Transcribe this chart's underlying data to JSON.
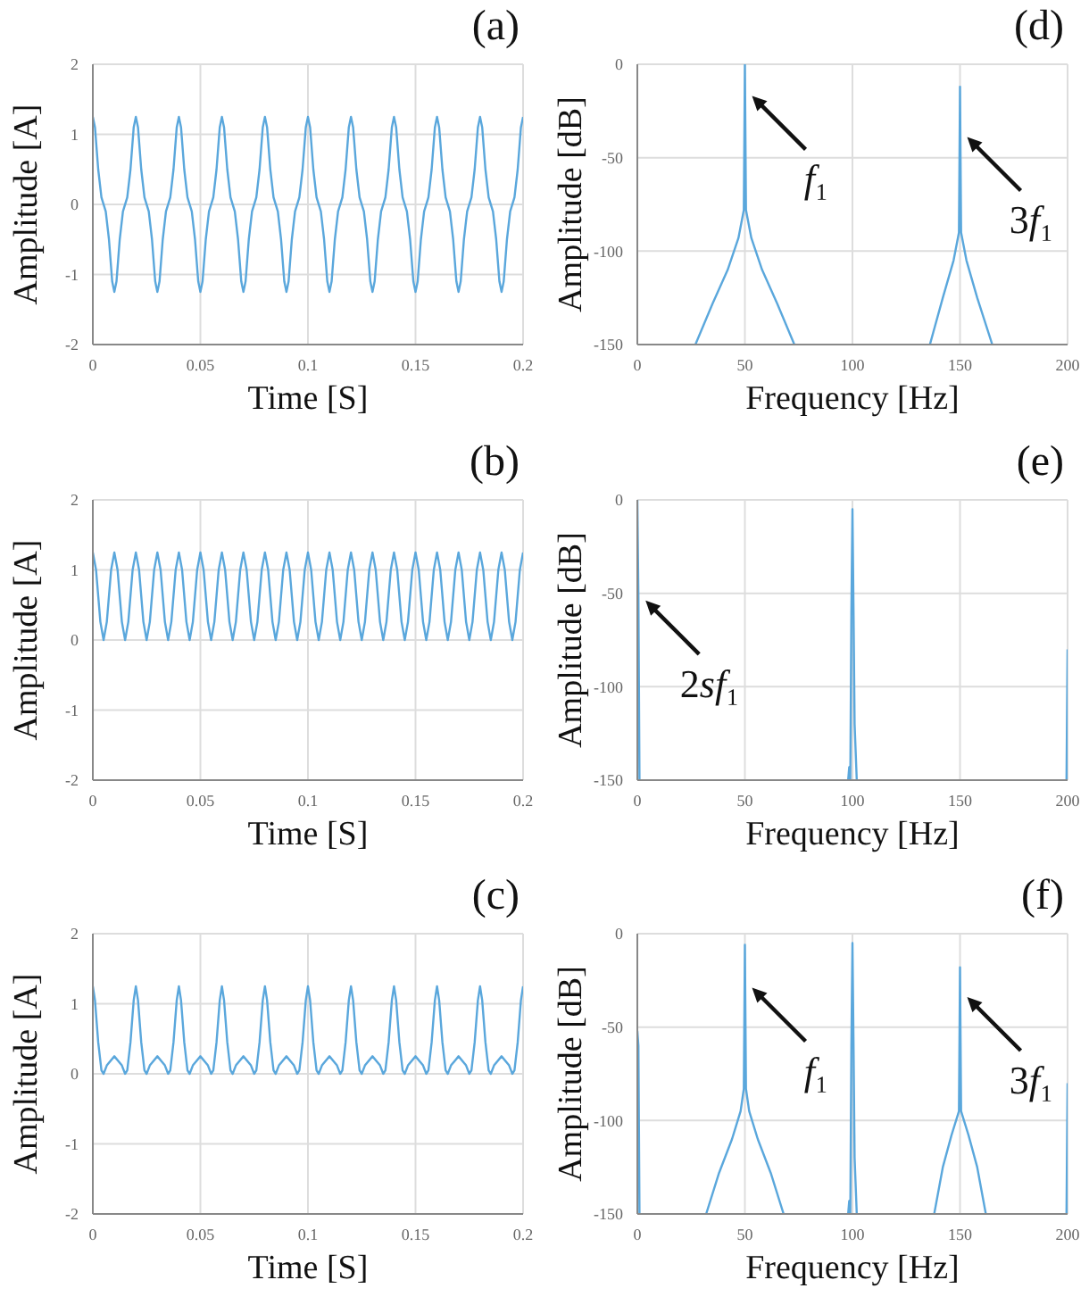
{
  "chart_data": [
    {
      "type": "line",
      "title": "(a)",
      "xlabel": "Time [S]",
      "ylabel": "Amplitude [A]",
      "color": "#5aa7dc",
      "grid": true,
      "xlim": [
        0,
        0.2
      ],
      "xticks": [
        0,
        0.05,
        0.1,
        0.15,
        0.2
      ],
      "ylim": [
        -2,
        2
      ],
      "yticks": [
        -2,
        -1,
        0,
        1,
        2
      ],
      "x": [
        0,
        0.001,
        0.0025,
        0.004,
        0.006,
        0.0075,
        0.009,
        0.01,
        0.011,
        0.0125,
        0.014,
        0.016,
        0.0175,
        0.019,
        0.02,
        0.021,
        0.0225,
        0.024,
        0.026,
        0.0275,
        0.029,
        0.03,
        0.031,
        0.0325,
        0.034,
        0.036,
        0.0375,
        0.039,
        0.04,
        0.041,
        0.0425,
        0.044,
        0.046,
        0.0475,
        0.049,
        0.05,
        0.051,
        0.0525,
        0.054,
        0.056,
        0.0575,
        0.059,
        0.06,
        0.061,
        0.0625,
        0.064,
        0.066,
        0.0675,
        0.069,
        0.07,
        0.071,
        0.0725,
        0.074,
        0.076,
        0.0775,
        0.079,
        0.08,
        0.081,
        0.0825,
        0.084,
        0.086,
        0.0875,
        0.089,
        0.09,
        0.091,
        0.0925,
        0.094,
        0.096,
        0.0975,
        0.099,
        0.1,
        0.101,
        0.1025,
        0.104,
        0.106,
        0.1075,
        0.109,
        0.11,
        0.111,
        0.1125,
        0.114,
        0.116,
        0.1175,
        0.119,
        0.12,
        0.121,
        0.1225,
        0.124,
        0.126,
        0.1275,
        0.129,
        0.13,
        0.131,
        0.1325,
        0.134,
        0.136,
        0.1375,
        0.139,
        0.14,
        0.141,
        0.1425,
        0.144,
        0.146,
        0.1475,
        0.149,
        0.15,
        0.151,
        0.1525,
        0.154,
        0.156,
        0.1575,
        0.159,
        0.16,
        0.161,
        0.1625,
        0.164,
        0.166,
        0.1675,
        0.169,
        0.17,
        0.171,
        0.1725,
        0.174,
        0.176,
        0.1775,
        0.179,
        0.18,
        0.181,
        0.1825,
        0.184,
        0.186,
        0.1875,
        0.189,
        0.19,
        0.191,
        0.1925,
        0.194,
        0.196,
        0.1975,
        0.199,
        0.2
      ],
      "values": [
        1.25,
        1.1,
        0.5,
        0.1,
        -0.1,
        -0.5,
        -1.1,
        -1.25,
        -1.1,
        -0.5,
        -0.1,
        0.1,
        0.5,
        1.1,
        1.25,
        1.1,
        0.5,
        0.1,
        -0.1,
        -0.5,
        -1.1,
        -1.25,
        -1.1,
        -0.5,
        -0.1,
        0.1,
        0.5,
        1.1,
        1.25,
        1.1,
        0.5,
        0.1,
        -0.1,
        -0.5,
        -1.1,
        -1.25,
        -1.1,
        -0.5,
        -0.1,
        0.1,
        0.5,
        1.1,
        1.25,
        1.1,
        0.5,
        0.1,
        -0.1,
        -0.5,
        -1.1,
        -1.25,
        -1.1,
        -0.5,
        -0.1,
        0.1,
        0.5,
        1.1,
        1.25,
        1.1,
        0.5,
        0.1,
        -0.1,
        -0.5,
        -1.1,
        -1.25,
        -1.1,
        -0.5,
        -0.1,
        0.1,
        0.5,
        1.1,
        1.25,
        1.1,
        0.5,
        0.1,
        -0.1,
        -0.5,
        -1.1,
        -1.25,
        -1.1,
        -0.5,
        -0.1,
        0.1,
        0.5,
        1.1,
        1.25,
        1.1,
        0.5,
        0.1,
        -0.1,
        -0.5,
        -1.1,
        -1.25,
        -1.1,
        -0.5,
        -0.1,
        0.1,
        0.5,
        1.1,
        1.25,
        1.1,
        0.5,
        0.1,
        -0.1,
        -0.5,
        -1.1,
        -1.25,
        -1.1,
        -0.5,
        -0.1,
        0.1,
        0.5,
        1.1,
        1.25,
        1.1,
        0.5,
        0.1,
        -0.1,
        -0.5,
        -1.1,
        -1.25,
        -1.1,
        -0.5,
        -0.1,
        0.1,
        0.5,
        1.1,
        1.25,
        1.1,
        0.5,
        0.1,
        -0.1,
        -0.5,
        -1.1,
        -1.25,
        -1.1,
        -0.5,
        -0.1,
        0.1,
        0.5,
        1.1,
        1.25
      ]
    },
    {
      "type": "line",
      "title": "(d)",
      "xlabel": "Frequency [Hz]",
      "ylabel": "Amplitude [dB]",
      "color": "#5aa7dc",
      "grid": true,
      "xlim": [
        0,
        200
      ],
      "xticks": [
        0,
        50,
        100,
        150,
        200
      ],
      "ylim": [
        -150,
        0
      ],
      "yticks": [
        -150,
        -100,
        -50,
        0
      ],
      "x": [
        27,
        35,
        42,
        47,
        49.5,
        50,
        50.5,
        53,
        58,
        65,
        73,
        100,
        136,
        142,
        147,
        149.5,
        150,
        150.5,
        153,
        158,
        165
      ],
      "values": [
        -150,
        -128,
        -110,
        -93,
        -78,
        0,
        -78,
        -93,
        -110,
        -128,
        -150,
        null,
        -150,
        -125,
        -105,
        -90,
        -12,
        -90,
        -105,
        -125,
        -150
      ],
      "annotations": [
        {
          "text": "f₁",
          "x": 50,
          "y": -15
        },
        {
          "text": "3f₁",
          "x": 150,
          "y": -37
        }
      ]
    },
    {
      "type": "line",
      "title": "(b)",
      "xlabel": "Time [S]",
      "ylabel": "Amplitude [A]",
      "color": "#5aa7dc",
      "grid": true,
      "xlim": [
        0,
        0.2
      ],
      "xticks": [
        0,
        0.05,
        0.1,
        0.15,
        0.2
      ],
      "ylim": [
        -2,
        2
      ],
      "yticks": [
        -2,
        -1,
        0,
        1,
        2
      ],
      "x": [
        0,
        0.0015,
        0.0035,
        0.005,
        0.0065,
        0.0085,
        0.01,
        0.0115,
        0.0135,
        0.015,
        0.0165,
        0.0185,
        0.02,
        0.0215,
        0.0235,
        0.025,
        0.0265,
        0.0285,
        0.03,
        0.0315,
        0.0335,
        0.035,
        0.0365,
        0.0385,
        0.04,
        0.0415,
        0.0435,
        0.045,
        0.0465,
        0.0485,
        0.05,
        0.0515,
        0.0535,
        0.055,
        0.0565,
        0.0585,
        0.06,
        0.0615,
        0.0635,
        0.065,
        0.0665,
        0.0685,
        0.07,
        0.0715,
        0.0735,
        0.075,
        0.0765,
        0.0785,
        0.08,
        0.0815,
        0.0835,
        0.085,
        0.0865,
        0.0885,
        0.09,
        0.0915,
        0.0935,
        0.095,
        0.0965,
        0.0985,
        0.1,
        0.1015,
        0.1035,
        0.105,
        0.1065,
        0.1085,
        0.11,
        0.1115,
        0.1135,
        0.115,
        0.1165,
        0.1185,
        0.12,
        0.1215,
        0.1235,
        0.125,
        0.1265,
        0.1285,
        0.13,
        0.1315,
        0.1335,
        0.135,
        0.1365,
        0.1385,
        0.14,
        0.1415,
        0.1435,
        0.145,
        0.1465,
        0.1485,
        0.15,
        0.1515,
        0.1535,
        0.155,
        0.1565,
        0.1585,
        0.16,
        0.1615,
        0.1635,
        0.165,
        0.1665,
        0.1685,
        0.17,
        0.1715,
        0.1735,
        0.175,
        0.1765,
        0.1785,
        0.18,
        0.1815,
        0.1835,
        0.185,
        0.1865,
        0.1885,
        0.19,
        0.1915,
        0.1935,
        0.195,
        0.1965,
        0.1985,
        0.2
      ],
      "values": [
        1.25,
        1,
        0.26,
        0,
        0.26,
        1,
        1.25,
        1,
        0.26,
        0,
        0.26,
        1,
        1.25,
        1,
        0.26,
        0,
        0.26,
        1,
        1.25,
        1,
        0.26,
        0,
        0.26,
        1,
        1.25,
        1,
        0.26,
        0,
        0.26,
        1,
        1.25,
        1,
        0.26,
        0,
        0.26,
        1,
        1.25,
        1,
        0.26,
        0,
        0.26,
        1,
        1.25,
        1,
        0.26,
        0,
        0.26,
        1,
        1.25,
        1,
        0.26,
        0,
        0.26,
        1,
        1.25,
        1,
        0.26,
        0,
        0.26,
        1,
        1.25,
        1,
        0.26,
        0,
        0.26,
        1,
        1.25,
        1,
        0.26,
        0,
        0.26,
        1,
        1.25,
        1,
        0.26,
        0,
        0.26,
        1,
        1.25,
        1,
        0.26,
        0,
        0.26,
        1,
        1.25,
        1,
        0.26,
        0,
        0.26,
        1,
        1.25,
        1,
        0.26,
        0,
        0.26,
        1,
        1.25,
        1,
        0.26,
        0,
        0.26,
        1,
        1.25,
        1,
        0.26,
        0,
        0.26,
        1,
        1.25,
        1,
        0.26,
        0,
        0.26,
        1,
        1.25,
        1,
        0.26,
        0,
        0.26,
        1,
        1.25
      ]
    },
    {
      "type": "line",
      "title": "(e)",
      "xlabel": "Frequency [Hz]",
      "ylabel": "Amplitude [dB]",
      "color": "#5aa7dc",
      "grid": true,
      "xlim": [
        0,
        200
      ],
      "xticks": [
        0,
        50,
        100,
        150,
        200
      ],
      "ylim": [
        -150,
        0
      ],
      "yticks": [
        -150,
        -100,
        -50,
        0
      ],
      "x": [
        0,
        0.5,
        1,
        50,
        98,
        98.5,
        99,
        99.5,
        100,
        100.5,
        101,
        102,
        150,
        199.5,
        200
      ],
      "values": [
        0,
        -52,
        -150,
        null,
        -150,
        -143,
        -150,
        -60,
        -5,
        -60,
        -120,
        -150,
        null,
        -150,
        -80
      ],
      "annotations": [
        {
          "text": "2sf₁",
          "x": 0.5,
          "y": -52
        }
      ]
    },
    {
      "type": "line",
      "title": "(c)",
      "xlabel": "Time [S]",
      "ylabel": "Amplitude [A]",
      "color": "#5aa7dc",
      "grid": true,
      "xlim": [
        0,
        0.2
      ],
      "xticks": [
        0,
        0.05,
        0.1,
        0.15,
        0.2
      ],
      "ylim": [
        -2,
        2
      ],
      "yticks": [
        -2,
        -1,
        0,
        1,
        2
      ],
      "x": [
        0,
        0.001,
        0.0025,
        0.004,
        0.005,
        0.0065,
        0.01,
        0.0135,
        0.015,
        0.016,
        0.0175,
        0.019,
        0.02,
        0.021,
        0.0225,
        0.024,
        0.025,
        0.0265,
        0.03,
        0.0335,
        0.035,
        0.036,
        0.0375,
        0.039,
        0.04,
        0.041,
        0.0425,
        0.044,
        0.045,
        0.0465,
        0.05,
        0.0535,
        0.055,
        0.056,
        0.0575,
        0.059,
        0.06,
        0.061,
        0.0625,
        0.064,
        0.065,
        0.0665,
        0.07,
        0.0735,
        0.075,
        0.076,
        0.0775,
        0.079,
        0.08,
        0.081,
        0.0825,
        0.084,
        0.085,
        0.0865,
        0.09,
        0.0935,
        0.095,
        0.096,
        0.0975,
        0.099,
        0.1,
        0.101,
        0.1025,
        0.104,
        0.105,
        0.1065,
        0.11,
        0.1135,
        0.115,
        0.116,
        0.1175,
        0.119,
        0.12,
        0.121,
        0.1225,
        0.124,
        0.125,
        0.1265,
        0.13,
        0.1335,
        0.135,
        0.136,
        0.1375,
        0.139,
        0.14,
        0.141,
        0.1425,
        0.144,
        0.145,
        0.1465,
        0.15,
        0.1535,
        0.155,
        0.156,
        0.1575,
        0.159,
        0.16,
        0.161,
        0.1625,
        0.164,
        0.165,
        0.1665,
        0.17,
        0.1735,
        0.175,
        0.176,
        0.1775,
        0.179,
        0.18,
        0.181,
        0.1825,
        0.184,
        0.185,
        0.1865,
        0.19,
        0.1935,
        0.195,
        0.196,
        0.1975,
        0.199,
        0.2
      ],
      "values": [
        1.25,
        1.05,
        0.45,
        0.05,
        0,
        0.12,
        0.25,
        0.12,
        0,
        0.05,
        0.45,
        1.05,
        1.25,
        1.05,
        0.45,
        0.05,
        0,
        0.12,
        0.25,
        0.12,
        0,
        0.05,
        0.45,
        1.05,
        1.25,
        1.05,
        0.45,
        0.05,
        0,
        0.12,
        0.25,
        0.12,
        0,
        0.05,
        0.45,
        1.05,
        1.25,
        1.05,
        0.45,
        0.05,
        0,
        0.12,
        0.25,
        0.12,
        0,
        0.05,
        0.45,
        1.05,
        1.25,
        1.05,
        0.45,
        0.05,
        0,
        0.12,
        0.25,
        0.12,
        0,
        0.05,
        0.45,
        1.05,
        1.25,
        1.05,
        0.45,
        0.05,
        0,
        0.12,
        0.25,
        0.12,
        0,
        0.05,
        0.45,
        1.05,
        1.25,
        1.05,
        0.45,
        0.05,
        0,
        0.12,
        0.25,
        0.12,
        0,
        0.05,
        0.45,
        1.05,
        1.25,
        1.05,
        0.45,
        0.05,
        0,
        0.12,
        0.25,
        0.12,
        0,
        0.05,
        0.45,
        1.05,
        1.25,
        1.05,
        0.45,
        0.05,
        0,
        0.12,
        0.25,
        0.12,
        0,
        0.05,
        0.45,
        1.05,
        1.25,
        1.05,
        0.45,
        0.05,
        0,
        0.12,
        0.25,
        0.12,
        0,
        0.05,
        0.45,
        1.05,
        1.25
      ]
    },
    {
      "type": "line",
      "title": "(f)",
      "xlabel": "Frequency [Hz]",
      "ylabel": "Amplitude [dB]",
      "color": "#5aa7dc",
      "grid": true,
      "xlim": [
        0,
        200
      ],
      "xticks": [
        0,
        50,
        100,
        150,
        200
      ],
      "ylim": [
        -150,
        0
      ],
      "yticks": [
        -150,
        -100,
        -50,
        0
      ],
      "x": [
        0,
        0.5,
        1,
        25,
        32,
        38,
        44,
        48,
        49.5,
        50,
        50.5,
        52,
        56,
        62,
        68,
        75,
        98,
        98.5,
        99,
        99.5,
        100,
        100.5,
        101,
        102,
        125,
        138,
        142,
        146,
        149.5,
        150,
        150.5,
        154,
        158,
        162,
        175,
        199.5,
        200
      ],
      "values": [
        -52,
        -60,
        -150,
        null,
        -150,
        -128,
        -110,
        -95,
        -83,
        -6,
        -83,
        -95,
        -110,
        -128,
        -150,
        null,
        -150,
        -143,
        -150,
        -60,
        -5,
        -60,
        -120,
        -150,
        null,
        -150,
        -125,
        -108,
        -95,
        -18,
        -95,
        -108,
        -125,
        -150,
        null,
        -150,
        -80
      ],
      "annotations": [
        {
          "text": "f₁",
          "x": 50,
          "y": -27
        },
        {
          "text": "3f₁",
          "x": 150,
          "y": -32
        }
      ]
    }
  ]
}
